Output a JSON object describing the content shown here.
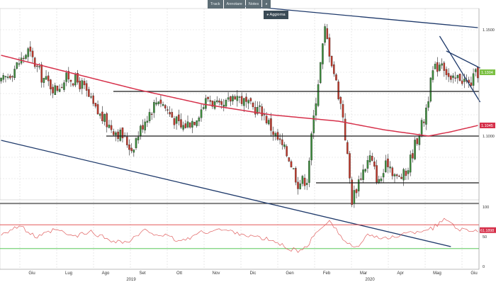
{
  "toolbar": {
    "track_label": "Track",
    "annotate_label": "Annotare",
    "notes_label": "Notes",
    "zoom_label": "",
    "refresh_label": "Aggiorna"
  },
  "colors": {
    "up_candle": "#3c8c3c",
    "down_candle": "#c0392b",
    "moving_average": "#d6304a",
    "trendline": "#1f3a6b",
    "support_resistance": "#1a1a1a",
    "rsi_line": "#e06060",
    "rsi_upper": "#e04040",
    "rsi_lower": "#40c040",
    "price_badge": "#7bc043",
    "ma_badge": "#d6304a",
    "rsi_badge": "#d6304a",
    "grid": "#d0d0d0"
  },
  "chart_data": {
    "type": "candlestick",
    "title": "",
    "xlabel": "",
    "ylabel": "",
    "y_axis_side": "right",
    "y_tick_labels": [
      "1.1500",
      "1.1000"
    ],
    "ylim": [
      1.07,
      1.16
    ],
    "x_tick_labels": [
      "Giu",
      "Lug",
      "Ago",
      "Set",
      "Ott",
      "Nov",
      "Dic",
      "Gen",
      "Feb",
      "Mar",
      "Apr",
      "Mag",
      "Giu"
    ],
    "year_labels": [
      "2019",
      "2020"
    ],
    "last_price_label": "1.1304",
    "moving_average_label": "1.1045",
    "horizontal_levels": [
      1.121,
      1.1,
      1.078
    ],
    "grid": true,
    "ohlc_series": {
      "name": "",
      "anchor_points_close": [
        [
          0,
          1.125
        ],
        [
          6,
          1.132
        ],
        [
          12,
          1.14
        ],
        [
          18,
          1.128
        ],
        [
          24,
          1.122
        ],
        [
          30,
          1.128
        ],
        [
          36,
          1.124
        ],
        [
          42,
          1.112
        ],
        [
          48,
          1.105
        ],
        [
          54,
          1.1
        ],
        [
          58,
          1.094
        ],
        [
          64,
          1.108
        ],
        [
          70,
          1.118
        ],
        [
          74,
          1.112
        ],
        [
          80,
          1.104
        ],
        [
          86,
          1.108
        ],
        [
          92,
          1.118
        ],
        [
          98,
          1.112
        ],
        [
          104,
          1.12
        ],
        [
          110,
          1.114
        ],
        [
          116,
          1.112
        ],
        [
          122,
          1.1
        ],
        [
          128,
          1.09
        ],
        [
          132,
          1.078
        ],
        [
          136,
          1.08
        ],
        [
          140,
          1.118
        ],
        [
          144,
          1.15
        ],
        [
          148,
          1.13
        ],
        [
          152,
          1.11
        ],
        [
          156,
          1.07
        ],
        [
          160,
          1.082
        ],
        [
          164,
          1.09
        ],
        [
          168,
          1.078
        ],
        [
          172,
          1.088
        ],
        [
          176,
          1.08
        ],
        [
          180,
          1.082
        ],
        [
          184,
          1.096
        ],
        [
          188,
          1.108
        ],
        [
          192,
          1.13
        ],
        [
          196,
          1.136
        ],
        [
          200,
          1.125
        ],
        [
          204,
          1.128
        ],
        [
          208,
          1.124
        ],
        [
          212,
          1.13
        ]
      ],
      "num_bars": 213
    },
    "moving_average": {
      "name": "",
      "points": [
        [
          0,
          1.138
        ],
        [
          30,
          1.13
        ],
        [
          60,
          1.122
        ],
        [
          90,
          1.115
        ],
        [
          120,
          1.11
        ],
        [
          150,
          1.107
        ],
        [
          170,
          1.103
        ],
        [
          190,
          1.1
        ],
        [
          200,
          1.102
        ],
        [
          212,
          1.105
        ]
      ]
    },
    "trendlines": [
      {
        "from": [
          100,
          1.162
        ],
        "to": [
          212,
          1.151
        ]
      },
      {
        "from": [
          0,
          1.098
        ],
        "to": [
          200,
          1.048
        ]
      },
      {
        "from": [
          195,
          1.147
        ],
        "to": [
          213,
          1.116
        ]
      },
      {
        "from": [
          198,
          1.14
        ],
        "to": [
          213,
          1.132
        ]
      }
    ],
    "rsi_panel": {
      "y_tick_labels": [
        "100",
        "50",
        "0"
      ],
      "ylim": [
        0,
        100
      ],
      "upper_level": 70,
      "lower_level": 30,
      "last_value_label": "61.1898",
      "anchor_points": [
        [
          0,
          55
        ],
        [
          8,
          68
        ],
        [
          16,
          48
        ],
        [
          24,
          62
        ],
        [
          32,
          50
        ],
        [
          40,
          58
        ],
        [
          48,
          45
        ],
        [
          56,
          40
        ],
        [
          64,
          60
        ],
        [
          72,
          52
        ],
        [
          80,
          42
        ],
        [
          88,
          56
        ],
        [
          96,
          62
        ],
        [
          104,
          58
        ],
        [
          112,
          50
        ],
        [
          120,
          44
        ],
        [
          128,
          30
        ],
        [
          134,
          25
        ],
        [
          140,
          55
        ],
        [
          146,
          80
        ],
        [
          152,
          45
        ],
        [
          158,
          30
        ],
        [
          164,
          55
        ],
        [
          170,
          45
        ],
        [
          176,
          52
        ],
        [
          184,
          58
        ],
        [
          192,
          65
        ],
        [
          198,
          80
        ],
        [
          204,
          62
        ],
        [
          212,
          61
        ]
      ]
    }
  }
}
